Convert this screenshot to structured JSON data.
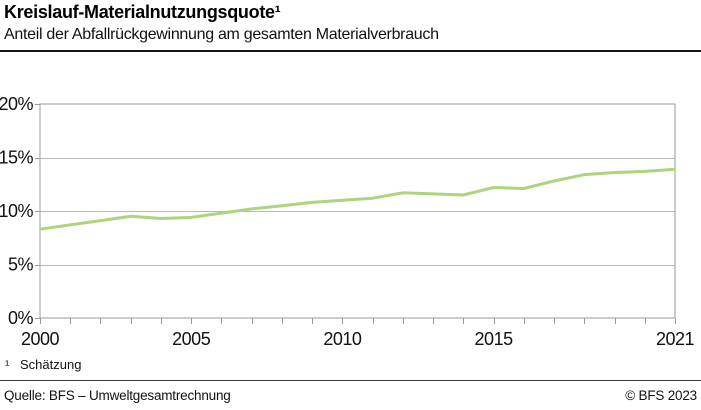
{
  "header": {
    "title": "Kreislauf-Materialnutzungsquote¹",
    "subtitle": "Anteil der Abfallrückgewinnung am gesamten Materialverbrauch"
  },
  "chart_data": {
    "type": "line",
    "title": "Kreislauf-Materialnutzungsquote¹",
    "subtitle": "Anteil der Abfallrückgewinnung am gesamten Materialverbrauch",
    "x": [
      2000,
      2001,
      2002,
      2003,
      2004,
      2005,
      2006,
      2007,
      2008,
      2009,
      2010,
      2011,
      2012,
      2013,
      2014,
      2015,
      2016,
      2017,
      2018,
      2019,
      2020,
      2021
    ],
    "series": [
      {
        "name": "Kreislauf-Materialnutzungsquote",
        "values": [
          8.3,
          8.7,
          9.1,
          9.5,
          9.3,
          9.4,
          9.8,
          10.2,
          10.5,
          10.8,
          11.0,
          11.2,
          11.7,
          11.6,
          11.5,
          12.2,
          12.1,
          12.8,
          13.4,
          13.6,
          13.7,
          13.9
        ],
        "color": "#aed47e"
      }
    ],
    "xlim": [
      2000,
      2021
    ],
    "ylim": [
      0,
      20
    ],
    "yticks": [
      0,
      5,
      10,
      15,
      20
    ],
    "ytick_labels": [
      "0%",
      "5%",
      "10%",
      "15%",
      "20%"
    ],
    "xticks": [
      2000,
      2005,
      2010,
      2015,
      2021
    ],
    "unit": "%",
    "grid": true,
    "legend_position": "none",
    "colors": {
      "line": "#aed47e",
      "gridline": "#b9b9b9",
      "plot_border": "#9a9a9a",
      "tick": "#9a9a9a",
      "text": "#111111"
    }
  },
  "footnote": {
    "marker": "¹",
    "text": "Schätzung"
  },
  "footer": {
    "source": "Quelle: BFS – Umweltgesamtrechnung",
    "copyright": "© BFS 2023"
  }
}
